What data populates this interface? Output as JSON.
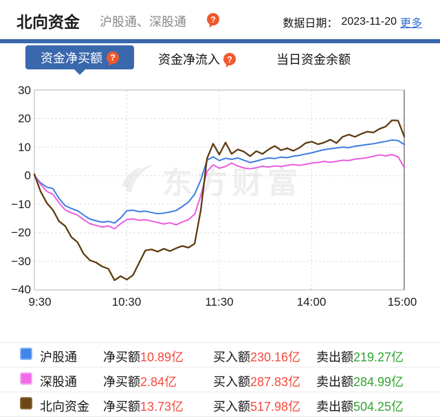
{
  "header": {
    "title": "北向资金",
    "subtitle": "沪股通、深股通",
    "date_label": "数据日期：",
    "date_value": "2023-11-20",
    "more_link": "更多"
  },
  "icons": {
    "help_glyph": "?"
  },
  "tabs": [
    {
      "label": "资金净买额",
      "selected": true,
      "has_help_icon": true
    },
    {
      "label": "资金净流入",
      "selected": false,
      "has_help_icon": true
    },
    {
      "label": "当日资金余额",
      "selected": false,
      "has_help_icon": false
    }
  ],
  "watermark": "东方财富",
  "colors": {
    "accent_blue": "#3a68ad",
    "link_blue": "#2b6bd0",
    "value_red": "#f5483c",
    "value_green": "#2fa52f",
    "grid": "#dcdcdc",
    "plot_border": "#b0b0b0",
    "help_icon_orange": "#f1582c"
  },
  "chart_data": {
    "type": "line",
    "title": "",
    "xlabel": "",
    "ylabel": "",
    "ylim": [
      -40,
      30
    ],
    "yticks": [
      "30",
      "20",
      "10",
      "0",
      "−10",
      "−20",
      "−30",
      "−40"
    ],
    "ygrid_values": [
      20,
      10,
      0,
      -10,
      -20,
      -30
    ],
    "xticks": [
      {
        "label": "9:30",
        "minute": 0
      },
      {
        "label": "10:30",
        "minute": 60
      },
      {
        "label": "11:30",
        "minute": 120
      },
      {
        "label": "14:00",
        "minute": 180
      },
      {
        "label": "15:00",
        "minute": 240
      }
    ],
    "xgrid_minutes": [
      60,
      120,
      180
    ],
    "x_total_minutes": 240,
    "x_step_minutes": 4,
    "x_note": "trading minutes from 9:30; lunch break 11:30-13:00 compressed out",
    "grid": true,
    "legend_position": "bottom-table",
    "unit": "亿元",
    "series": [
      {
        "name": "沪股通",
        "key": "hugutong",
        "color": "#3d7ce2",
        "width": 2,
        "values": [
          0,
          -2.5,
          -4,
          -4.5,
          -8,
          -10.5,
          -11.5,
          -12.3,
          -13.8,
          -15.2,
          -15.8,
          -16.3,
          -16,
          -16.6,
          -14.8,
          -12.3,
          -12.1,
          -12.6,
          -12.4,
          -12.9,
          -13.3,
          -13.1,
          -12.7,
          -12.2,
          -10.8,
          -9.2,
          -6.5,
          -1.5,
          5.4,
          6.6,
          5.3,
          6.1,
          5.7,
          6.2,
          5.4,
          4.6,
          5.1,
          5.7,
          6.2,
          6,
          6.5,
          6.3,
          6.8,
          7.1,
          7.6,
          8,
          8.6,
          9.1,
          9.4,
          9.7,
          10,
          9.8,
          10.3,
          10.6,
          10.9,
          11.2,
          11.6,
          12,
          12.5,
          12.3,
          10.89
        ]
      },
      {
        "name": "深股通",
        "key": "shengutong",
        "color": "#ea5cdf",
        "width": 2,
        "values": [
          0,
          -3,
          -5.5,
          -6.5,
          -9.5,
          -12,
          -13,
          -13.8,
          -15.4,
          -16.8,
          -17.4,
          -18,
          -17.6,
          -18.6,
          -16.8,
          -15.4,
          -15.1,
          -15.6,
          -15.4,
          -15.9,
          -16.4,
          -16.9,
          -16.5,
          -17.2,
          -16.2,
          -15.4,
          -13.5,
          -7,
          1.5,
          3.8,
          2.6,
          3.2,
          4.4,
          3.4,
          2.7,
          2.4,
          2.8,
          3.3,
          3,
          3.4,
          3.2,
          3.6,
          3.9,
          3.6,
          4,
          4.4,
          4.6,
          5,
          4.7,
          5,
          5.4,
          5.3,
          5.8,
          6,
          6.3,
          6.8,
          7.3,
          6.9,
          7.4,
          6.6,
          2.84
        ]
      },
      {
        "name": "北向资金",
        "key": "beixiangzijin",
        "color": "#5d3a0f",
        "width": 2.3,
        "values": [
          0.5,
          -5.5,
          -9.5,
          -12,
          -16,
          -17.6,
          -21.5,
          -23.3,
          -27.4,
          -29.6,
          -30.4,
          -31.8,
          -32.6,
          -36.6,
          -35.2,
          -36.4,
          -34.8,
          -30.5,
          -26.2,
          -25.8,
          -26.6,
          -25.6,
          -26.4,
          -25.4,
          -24.6,
          -25.2,
          -23.8,
          -12,
          6,
          11.2,
          7.4,
          11.6,
          7.6,
          9.2,
          8.4,
          6.8,
          8.6,
          7.6,
          9.2,
          10.4,
          8.9,
          9.6,
          8.7,
          9.8,
          11.4,
          11.9,
          11,
          11.6,
          12.6,
          11.4,
          13.6,
          14.4,
          13.6,
          14.6,
          15.4,
          15.1,
          16.4,
          17.2,
          19.4,
          19.3,
          13.73
        ]
      }
    ]
  },
  "legend": {
    "rows": [
      {
        "name": "沪股通",
        "swatch": "#4084ea",
        "swatch_border": "#86b0f4",
        "net_label": "净买额",
        "net_value": "10.89亿",
        "buy_label": "买入额",
        "buy_value": "230.16亿",
        "sell_label": "卖出额",
        "sell_value": "219.27亿"
      },
      {
        "name": "深股通",
        "swatch": "#ef6be8",
        "swatch_border": "#f7a6ef",
        "net_label": "净买额",
        "net_value": "2.84亿",
        "buy_label": "买入额",
        "buy_value": "287.83亿",
        "sell_label": "卖出额",
        "sell_value": "284.99亿"
      },
      {
        "name": "北向资金",
        "swatch": "#6b4619",
        "swatch_border": "#8a6a3a",
        "net_label": "净买额",
        "net_value": "13.73亿",
        "buy_label": "买入额",
        "buy_value": "517.98亿",
        "sell_label": "卖出额",
        "sell_value": "504.25亿"
      }
    ]
  }
}
